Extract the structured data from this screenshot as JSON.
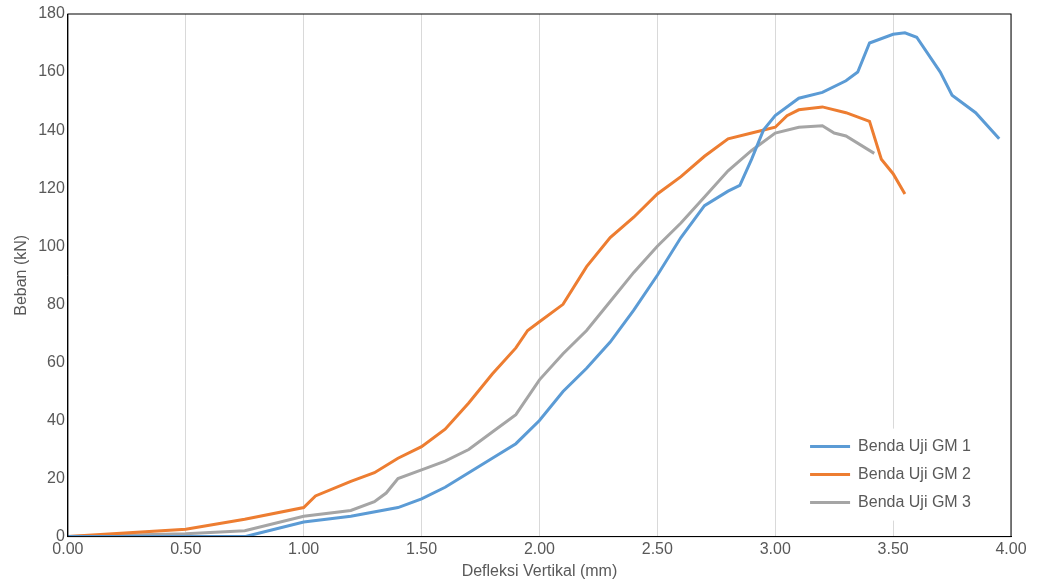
{
  "chart_data": {
    "type": "line",
    "x_label": "Defleksi Vertikal (mm)",
    "y_label": "Beban (kN)",
    "xlim": [
      0,
      4
    ],
    "xticks": [
      {
        "value": 0,
        "label": "0.00"
      },
      {
        "value": 0.5,
        "label": "0.50"
      },
      {
        "value": 1,
        "label": "1.00"
      },
      {
        "value": 1.5,
        "label": "1.50"
      },
      {
        "value": 2,
        "label": "2.00"
      },
      {
        "value": 2.5,
        "label": "2.50"
      },
      {
        "value": 3,
        "label": "3.00"
      },
      {
        "value": 3.5,
        "label": "3.50"
      },
      {
        "value": 4,
        "label": "4.00"
      }
    ],
    "ylim": [
      0,
      180
    ],
    "yticks": [
      0,
      20,
      40,
      60,
      80,
      100,
      120,
      140,
      160,
      180
    ],
    "grid": "x",
    "legend": "lower right",
    "series": [
      {
        "name": "Benda Uji GM 1",
        "color": "#5b9bd5",
        "x": [
          0,
          0.5,
          0.75,
          0.8,
          1.0,
          1.2,
          1.4,
          1.5,
          1.6,
          1.7,
          1.8,
          1.9,
          2.0,
          2.1,
          2.2,
          2.3,
          2.4,
          2.5,
          2.6,
          2.7,
          2.8,
          2.85,
          2.9,
          2.95,
          3.0,
          3.1,
          3.2,
          3.3,
          3.35,
          3.4,
          3.5,
          3.55,
          3.6,
          3.7,
          3.75,
          3.85,
          3.95
        ],
        "values": [
          0,
          0,
          0,
          1,
          5,
          7,
          10,
          13,
          17,
          22,
          27,
          32,
          40,
          50,
          58,
          67,
          78,
          90,
          103,
          114,
          119,
          121,
          130,
          140,
          145,
          151,
          153,
          157,
          160,
          170,
          173,
          173.5,
          172,
          160,
          152,
          146,
          137
        ]
      },
      {
        "name": "Benda Uji GM 2",
        "color": "#ed7d31",
        "x": [
          0,
          0.5,
          0.75,
          1.0,
          1.05,
          1.2,
          1.3,
          1.4,
          1.5,
          1.6,
          1.7,
          1.8,
          1.9,
          1.95,
          2.0,
          2.1,
          2.2,
          2.3,
          2.4,
          2.5,
          2.6,
          2.7,
          2.8,
          2.9,
          3.0,
          3.05,
          3.1,
          3.2,
          3.3,
          3.4,
          3.45,
          3.5,
          3.55
        ],
        "values": [
          0,
          2.5,
          6,
          10,
          14,
          19,
          22,
          27,
          31,
          37,
          46,
          56,
          65,
          71,
          74,
          80,
          93,
          103,
          110,
          118,
          124,
          131,
          137,
          139,
          141,
          145,
          147,
          148,
          146,
          143,
          130,
          125,
          118
        ]
      },
      {
        "name": "Benda Uji GM 3",
        "color": "#a5a5a5",
        "x": [
          0,
          0.5,
          0.75,
          1.0,
          1.2,
          1.3,
          1.35,
          1.4,
          1.5,
          1.6,
          1.7,
          1.8,
          1.9,
          2.0,
          2.1,
          2.2,
          2.3,
          2.4,
          2.5,
          2.6,
          2.7,
          2.8,
          2.9,
          3.0,
          3.1,
          3.2,
          3.25,
          3.3,
          3.42
        ],
        "values": [
          0,
          1,
          2,
          7,
          9,
          12,
          15,
          20,
          23,
          26,
          30,
          36,
          42,
          54,
          63,
          71,
          81,
          91,
          100,
          108,
          117,
          126,
          133,
          139,
          141,
          141.5,
          139,
          138,
          132
        ]
      }
    ]
  }
}
